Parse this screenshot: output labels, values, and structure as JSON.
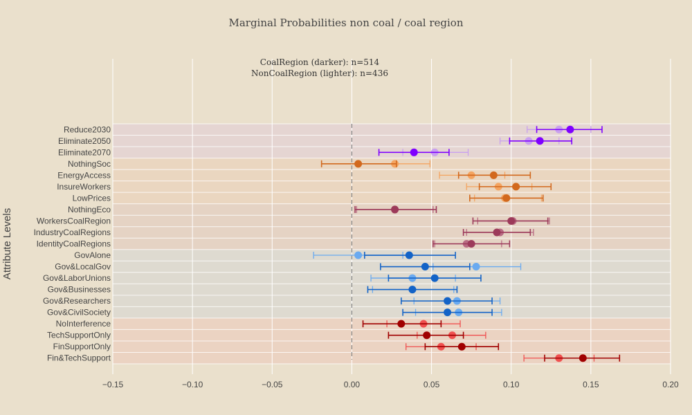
{
  "chart_data": {
    "type": "scatter",
    "title": "Marginal Probabilities non coal / coal region",
    "ylabel": "Attribute Levels",
    "xlabel": "",
    "xlim": [
      -0.15,
      0.2
    ],
    "xticks": [
      -0.15,
      -0.1,
      -0.05,
      0.0,
      0.05,
      0.1,
      0.15,
      0.2
    ],
    "xtick_labels": [
      "−0.15",
      "−0.10",
      "−0.05",
      "0.00",
      "0.05",
      "0.10",
      "0.15",
      "0.20"
    ],
    "reference_line_x": 0,
    "annotations": [
      "CoalRegion (darker): n=514",
      "NonCoalRegion (lighter): n=436"
    ],
    "groups": [
      {
        "band_color": "#e5d5d2",
        "dark": "#7f00ff",
        "light": "#c9a0ef",
        "from": 0,
        "to": 2
      },
      {
        "band_color": "#eaD6c0",
        "dark": "#d2691e",
        "light": "#f4a460",
        "from": 3,
        "to": 6
      },
      {
        "band_color": "#e5d3c4",
        "dark": "#9c3a5a",
        "light": "#b86b83",
        "from": 7,
        "to": 10
      },
      {
        "band_color": "#dedad0",
        "dark": "#1363c7",
        "light": "#6aaaf0",
        "from": 11,
        "to": 16
      },
      {
        "band_color": "#ebd3c2",
        "dark": "#a00000",
        "light": "#f05050",
        "from": 17,
        "to": 20
      }
    ],
    "levels": [
      {
        "label": "Reduce2030",
        "coal": 0.137,
        "coal_ci": [
          0.116,
          0.157
        ],
        "noncoal": 0.13,
        "noncoal_ci": [
          0.11,
          0.15
        ]
      },
      {
        "label": "Eliminate2050",
        "coal": 0.118,
        "coal_ci": [
          0.099,
          0.138
        ],
        "noncoal": 0.111,
        "noncoal_ci": [
          0.093,
          0.13
        ]
      },
      {
        "label": "Eliminate2070",
        "coal": 0.039,
        "coal_ci": [
          0.017,
          0.061
        ],
        "noncoal": 0.052,
        "noncoal_ci": [
          0.032,
          0.073
        ]
      },
      {
        "label": "NothingSoc",
        "coal": 0.004,
        "coal_ci": [
          -0.019,
          0.028
        ],
        "noncoal": 0.027,
        "noncoal_ci": [
          0.005,
          0.049
        ]
      },
      {
        "label": "EnergyAccess",
        "coal": 0.089,
        "coal_ci": [
          0.067,
          0.112
        ],
        "noncoal": 0.075,
        "noncoal_ci": [
          0.055,
          0.096
        ]
      },
      {
        "label": "InsureWorkers",
        "coal": 0.103,
        "coal_ci": [
          0.08,
          0.125
        ],
        "noncoal": 0.092,
        "noncoal_ci": [
          0.072,
          0.113
        ]
      },
      {
        "label": "LowPrices",
        "coal": 0.097,
        "coal_ci": [
          0.074,
          0.12
        ],
        "noncoal": 0.096,
        "noncoal_ci": [
          0.077,
          0.119
        ]
      },
      {
        "label": "NothingEco",
        "coal": 0.027,
        "coal_ci": [
          0.002,
          0.053
        ],
        "noncoal": 0.027,
        "noncoal_ci": [
          0.003,
          0.051
        ]
      },
      {
        "label": "WorkersCoalRegion",
        "coal": 0.1,
        "coal_ci": [
          0.076,
          0.123
        ],
        "noncoal": 0.101,
        "noncoal_ci": [
          0.079,
          0.124
        ]
      },
      {
        "label": "IndustryCoalRegions",
        "coal": 0.091,
        "coal_ci": [
          0.07,
          0.112
        ],
        "noncoal": 0.093,
        "noncoal_ci": [
          0.072,
          0.114
        ]
      },
      {
        "label": "IdentityCoalRegions",
        "coal": 0.075,
        "coal_ci": [
          0.051,
          0.099
        ],
        "noncoal": 0.072,
        "noncoal_ci": [
          0.052,
          0.094
        ]
      },
      {
        "label": "GovAlone",
        "coal": 0.036,
        "coal_ci": [
          0.008,
          0.065
        ],
        "noncoal": 0.004,
        "noncoal_ci": [
          -0.024,
          0.032
        ]
      },
      {
        "label": "Gov&LocalGov",
        "coal": 0.046,
        "coal_ci": [
          0.018,
          0.074
        ],
        "noncoal": 0.078,
        "noncoal_ci": [
          0.051,
          0.106
        ]
      },
      {
        "label": "Gov&LaborUnions",
        "coal": 0.052,
        "coal_ci": [
          0.023,
          0.081
        ],
        "noncoal": 0.038,
        "noncoal_ci": [
          0.012,
          0.065
        ]
      },
      {
        "label": "Gov&Businesses",
        "coal": 0.038,
        "coal_ci": [
          0.01,
          0.066
        ],
        "noncoal": 0.038,
        "noncoal_ci": [
          0.013,
          0.064
        ]
      },
      {
        "label": "Gov&Researchers",
        "coal": 0.06,
        "coal_ci": [
          0.031,
          0.088
        ],
        "noncoal": 0.066,
        "noncoal_ci": [
          0.039,
          0.093
        ]
      },
      {
        "label": "Gov&CivilSociety",
        "coal": 0.06,
        "coal_ci": [
          0.032,
          0.088
        ],
        "noncoal": 0.067,
        "noncoal_ci": [
          0.04,
          0.094
        ]
      },
      {
        "label": "NoInterference",
        "coal": 0.031,
        "coal_ci": [
          0.007,
          0.056
        ],
        "noncoal": 0.045,
        "noncoal_ci": [
          0.022,
          0.068
        ]
      },
      {
        "label": "TechSupportOnly",
        "coal": 0.047,
        "coal_ci": [
          0.023,
          0.07
        ],
        "noncoal": 0.063,
        "noncoal_ci": [
          0.041,
          0.084
        ]
      },
      {
        "label": "FinSupportOnly",
        "coal": 0.069,
        "coal_ci": [
          0.046,
          0.092
        ],
        "noncoal": 0.056,
        "noncoal_ci": [
          0.034,
          0.078
        ]
      },
      {
        "label": "Fin&TechSupport",
        "coal": 0.145,
        "coal_ci": [
          0.121,
          0.168
        ],
        "noncoal": 0.13,
        "noncoal_ci": [
          0.108,
          0.152
        ]
      }
    ]
  }
}
